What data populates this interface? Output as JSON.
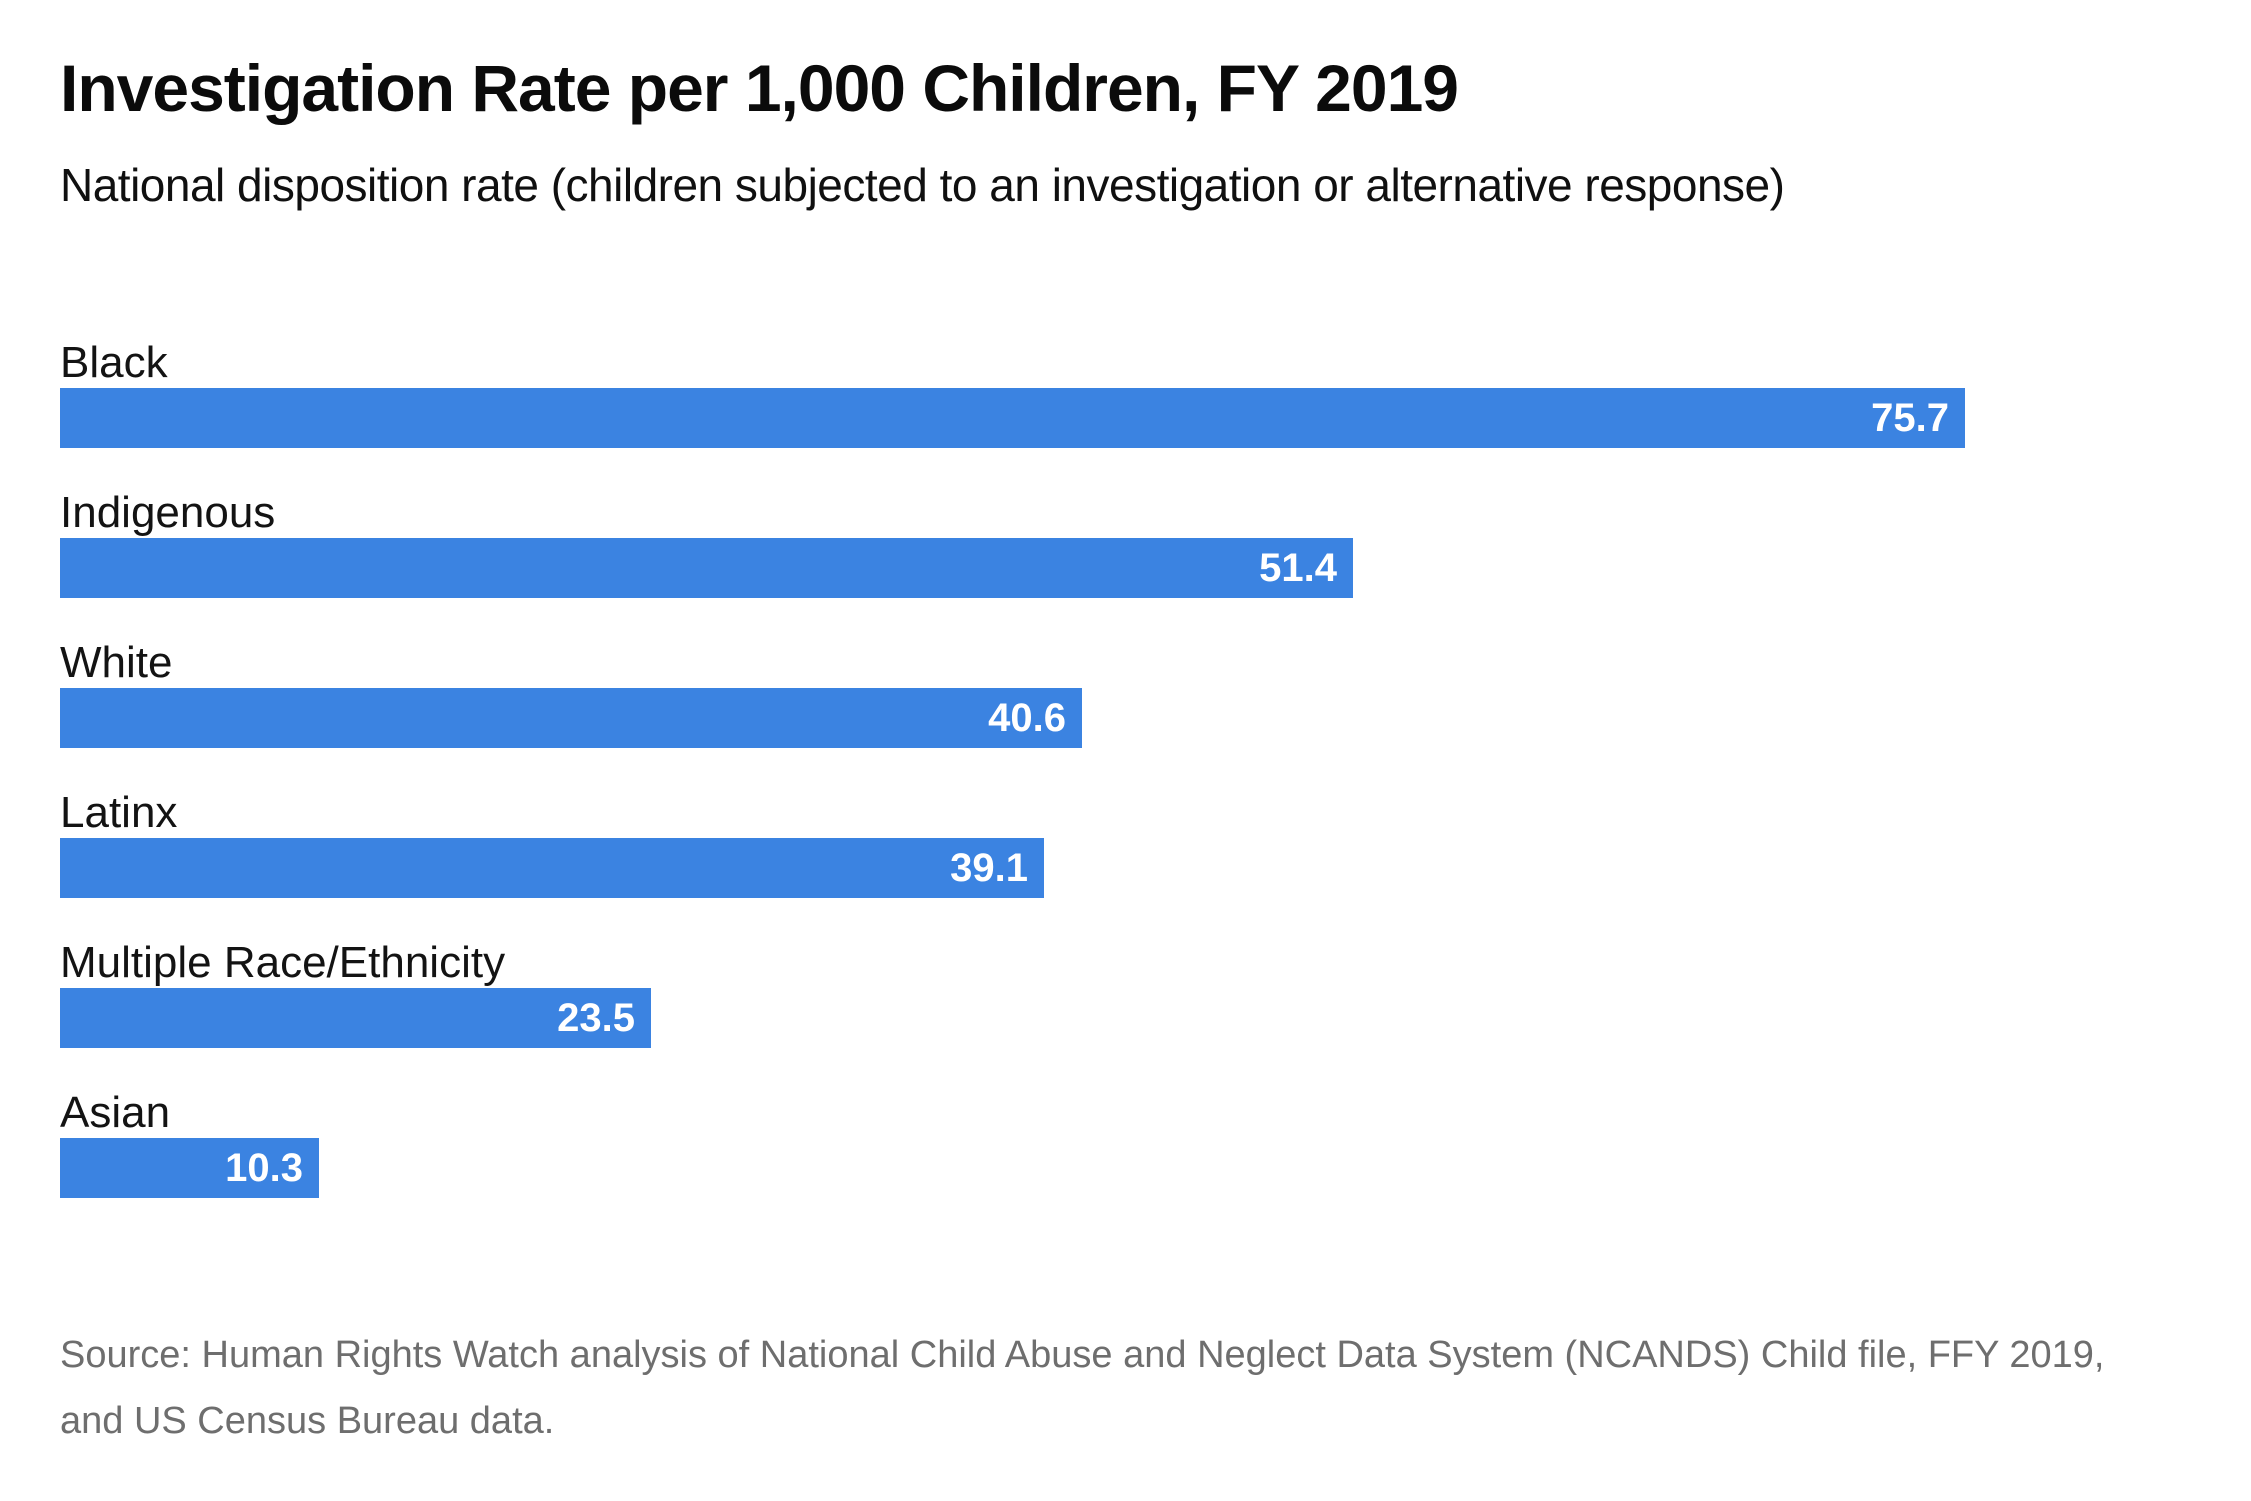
{
  "header": {
    "title": "Investigation Rate per 1,000 Children, FY 2019",
    "subtitle": "National disposition rate (children subjected to an investigation or alternative response)"
  },
  "chart_data": {
    "type": "bar",
    "orientation": "horizontal",
    "title": "Investigation Rate per 1,000 Children, FY 2019",
    "subtitle": "National disposition rate (children subjected to an investigation or alternative response)",
    "categories": [
      "Black",
      "Indigenous",
      "White",
      "Latinx",
      "Multiple Race/Ethnicity",
      "Asian"
    ],
    "values": [
      75.7,
      51.4,
      40.6,
      39.1,
      23.5,
      10.3
    ],
    "value_labels": [
      "75.7",
      "51.4",
      "40.6",
      "39.1",
      "23.5",
      "10.3"
    ],
    "xlim": [
      0,
      75.7
    ],
    "grid": false,
    "legend": false,
    "axis_lines": false,
    "bar_color": "#3b83e1",
    "value_label_color": "#ffffff",
    "category_label_color": "#131313",
    "value_label_position": "inside-end"
  },
  "source": {
    "line1": "Source: Human Rights Watch analysis of National Child Abuse and Neglect Data System (NCANDS) Child file, FFY 2019,",
    "line2": "and US Census Bureau data."
  },
  "colors": {
    "background": "#ffffff",
    "title_text": "#0b0b0b",
    "source_text": "#6e6e6e",
    "bar_blue": "#3b83e1"
  }
}
